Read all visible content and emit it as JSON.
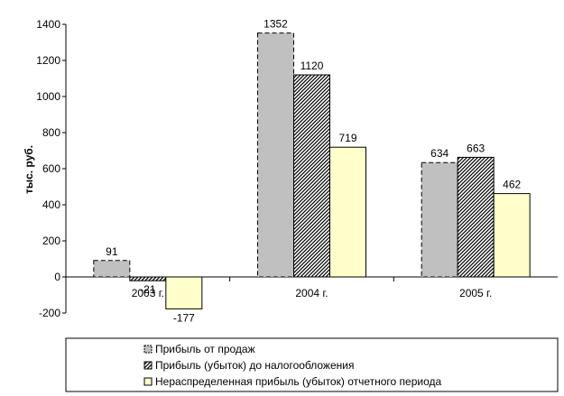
{
  "chart_data": {
    "type": "bar",
    "categories": [
      "2003 г.",
      "2004 г.",
      "2005 г."
    ],
    "series": [
      {
        "name": "Прибыль от продаж",
        "values": [
          91,
          1352,
          634
        ],
        "color": "#c0c0c0",
        "pattern": "solid-gray-dashed"
      },
      {
        "name": "Прибыль (убыток) до налогообложения",
        "values": [
          -21,
          1120,
          663
        ],
        "color": "#000000",
        "pattern": "diagonal-hatch"
      },
      {
        "name": "Нераспределенная прибыль (убыток) отчетного периода",
        "values": [
          -177,
          719,
          462
        ],
        "color": "#ffffcc",
        "pattern": "solid-light-yellow"
      }
    ],
    "data_labels": [
      [
        "91",
        "1352",
        "634"
      ],
      [
        "-21",
        "1120",
        "663"
      ],
      [
        "-177",
        "719",
        "462"
      ]
    ],
    "title": "",
    "xlabel": "",
    "ylabel": "тыс. руб.",
    "ylim": [
      -200,
      1400
    ],
    "yticks": [
      -200,
      0,
      200,
      400,
      600,
      800,
      1000,
      1200,
      1400
    ],
    "ytick_labels": [
      "-200",
      "0",
      "200",
      "400",
      "600",
      "800",
      "1000",
      "1200",
      "1400"
    ],
    "grid": false,
    "legend_position": "bottom"
  }
}
